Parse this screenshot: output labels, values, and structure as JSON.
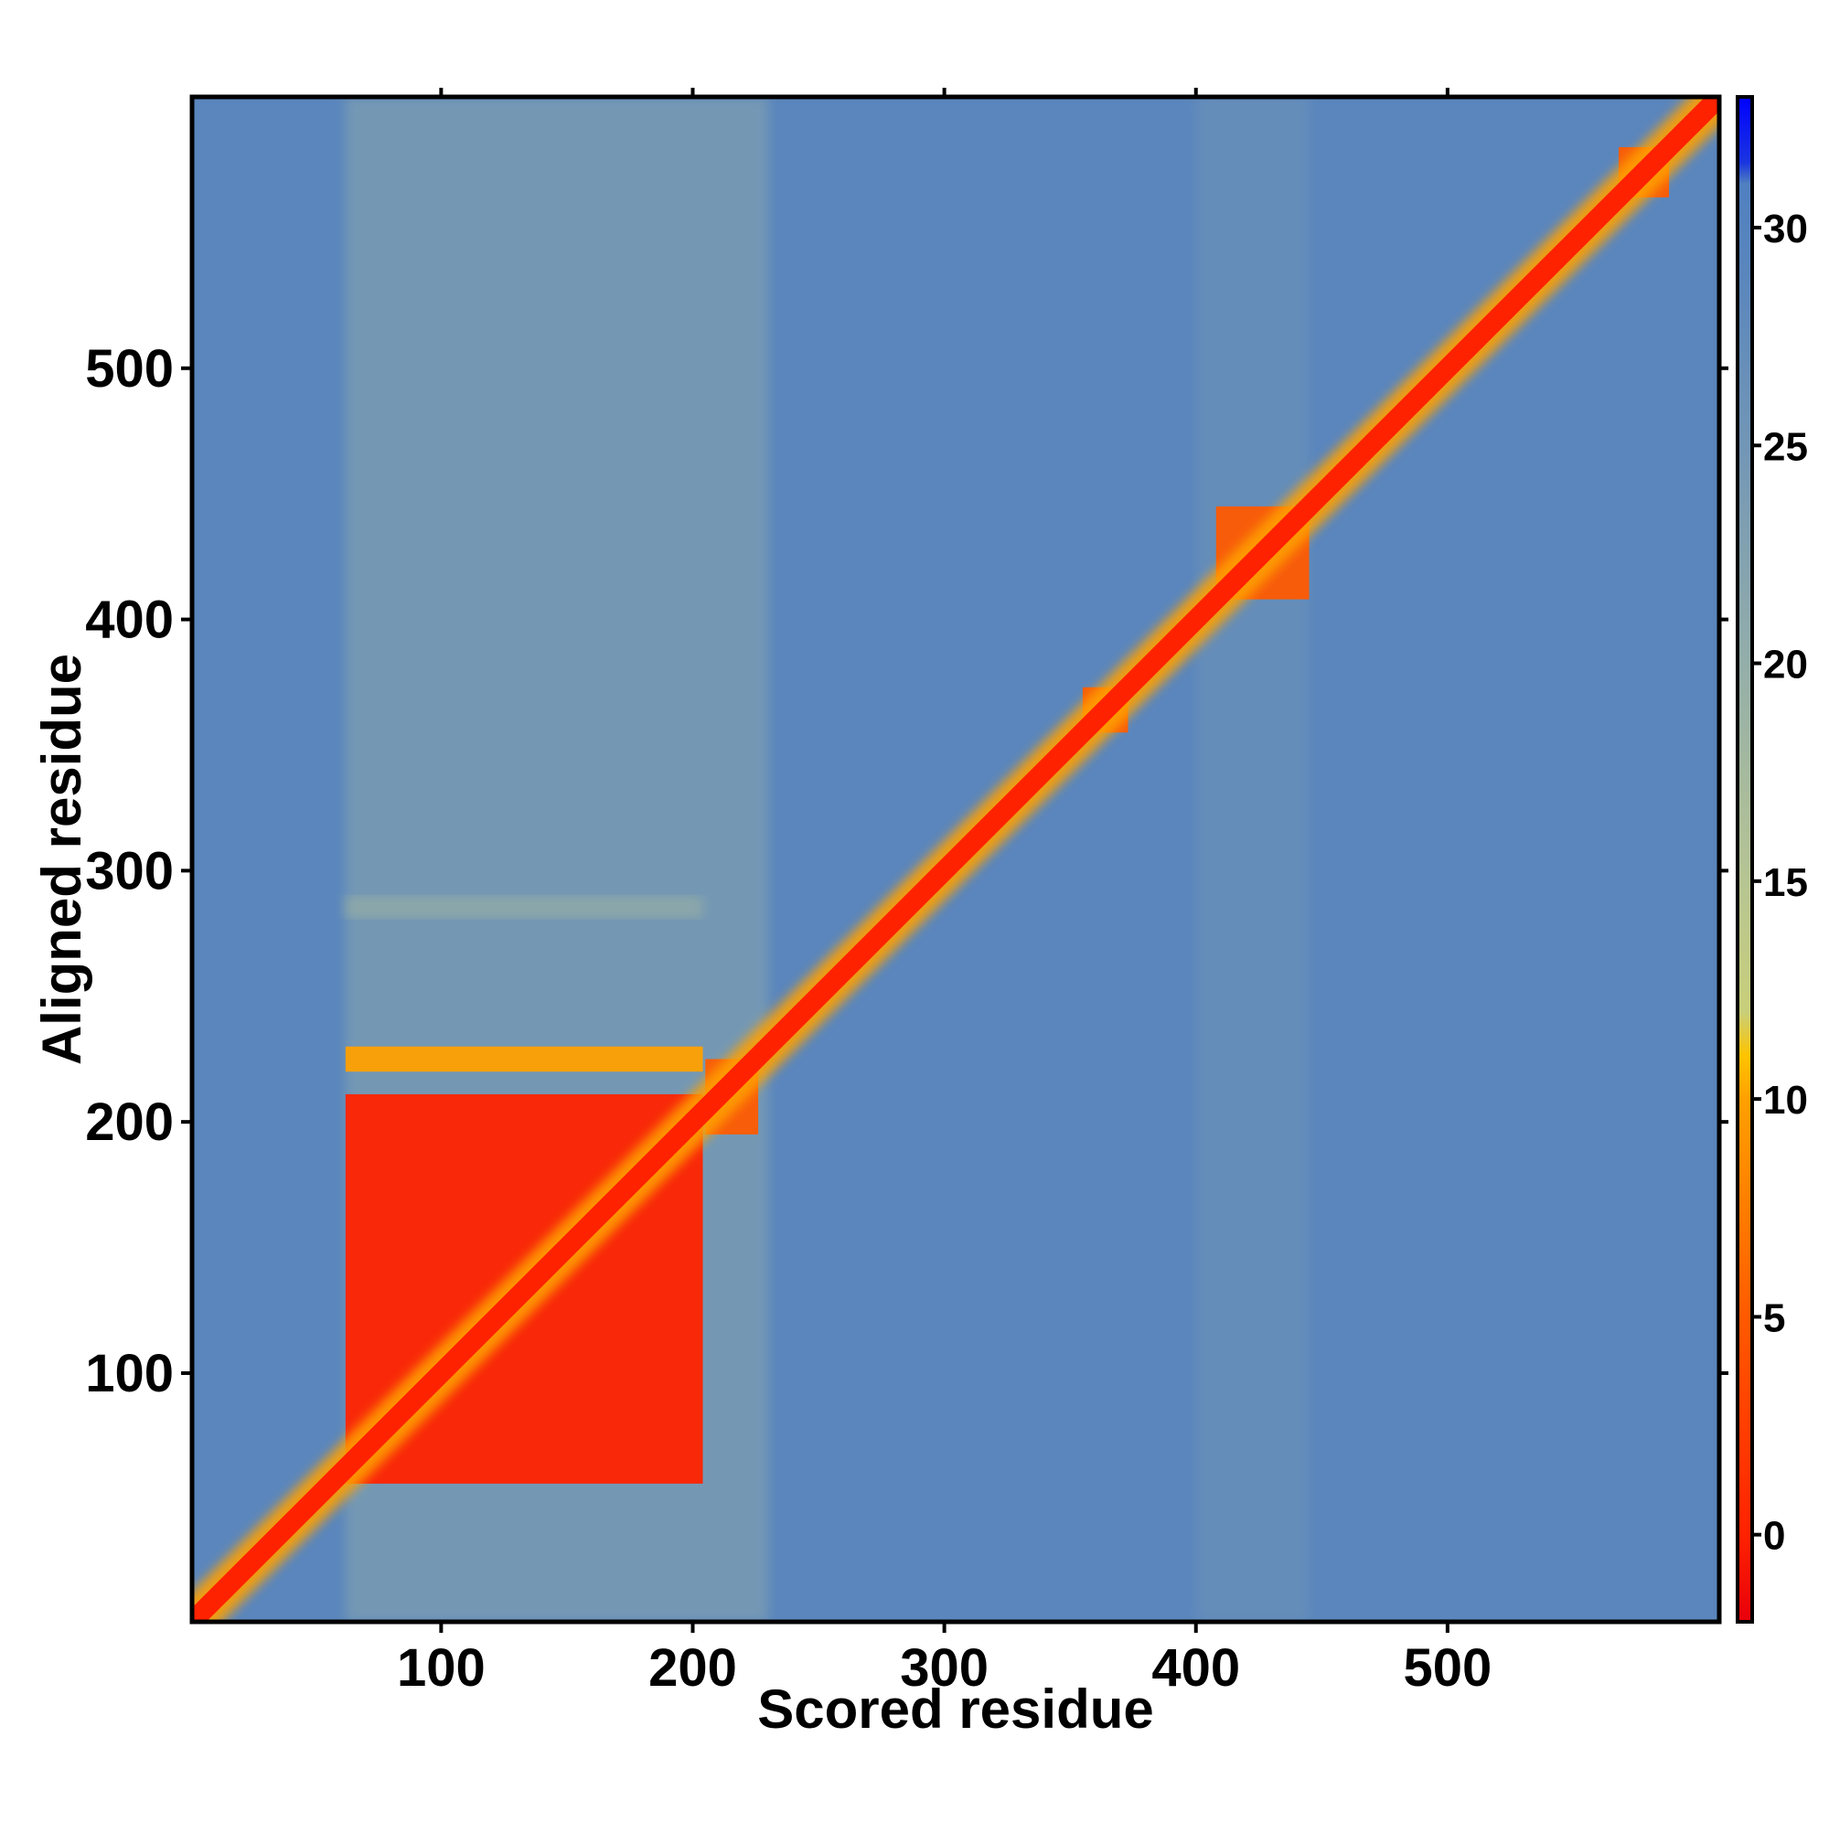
{
  "chart_data": {
    "type": "heatmap",
    "title": "",
    "xlabel": "Scored residue",
    "ylabel": "Aligned residue",
    "xlim": [
      1,
      608
    ],
    "ylim": [
      1,
      608
    ],
    "x_ticks": [
      100,
      200,
      300,
      400,
      500
    ],
    "y_ticks": [
      100,
      200,
      300,
      400,
      500
    ],
    "grid": false,
    "colorbar": {
      "placement": "right",
      "range": [
        -2,
        33
      ],
      "ticks": [
        0,
        5,
        10,
        15,
        20,
        25,
        30
      ],
      "stops": [
        {
          "value": -2,
          "color": "#e8000b"
        },
        {
          "value": 0,
          "color": "#ff2200"
        },
        {
          "value": 5,
          "color": "#ff5a00"
        },
        {
          "value": 10,
          "color": "#ffa000"
        },
        {
          "value": 11,
          "color": "#ffc400"
        },
        {
          "value": 12,
          "color": "#c8cf7a"
        },
        {
          "value": 15,
          "color": "#b7c593"
        },
        {
          "value": 20,
          "color": "#94aeaa"
        },
        {
          "value": 25,
          "color": "#7296b6"
        },
        {
          "value": 29,
          "color": "#5a86bd"
        },
        {
          "value": 31,
          "color": "#5080c0"
        },
        {
          "value": 31.5,
          "color": "#1a35e0"
        },
        {
          "value": 33,
          "color": "#0000ff"
        }
      ]
    },
    "features": [
      {
        "kind": "diagonal",
        "from": 1,
        "to": 608,
        "value": 1
      },
      {
        "kind": "block",
        "x": [
          62,
          204
        ],
        "y": [
          56,
          211
        ],
        "value": 2
      },
      {
        "kind": "block",
        "x": [
          62,
          204
        ],
        "y": [
          220,
          230
        ],
        "value": 8
      },
      {
        "kind": "block",
        "x": [
          205,
          226
        ],
        "y": [
          195,
          225
        ],
        "value": 6
      },
      {
        "kind": "block",
        "x": [
          408,
          445
        ],
        "y": [
          408,
          445
        ],
        "value": 4
      },
      {
        "kind": "block",
        "x": [
          355,
          373
        ],
        "y": [
          355,
          373
        ],
        "value": 4
      },
      {
        "kind": "block",
        "x": [
          568,
          588
        ],
        "y": [
          568,
          588
        ],
        "value": 5
      },
      {
        "kind": "band",
        "x": [
          62,
          204
        ],
        "y": [
          281,
          290
        ],
        "value": 16
      },
      {
        "kind": "band",
        "x": [
          62,
          230
        ],
        "y": [
          1,
          608
        ],
        "value": 22
      },
      {
        "kind": "band",
        "x": [
          400,
          445
        ],
        "y": [
          1,
          608
        ],
        "value": 24
      }
    ],
    "background_value": 29
  }
}
